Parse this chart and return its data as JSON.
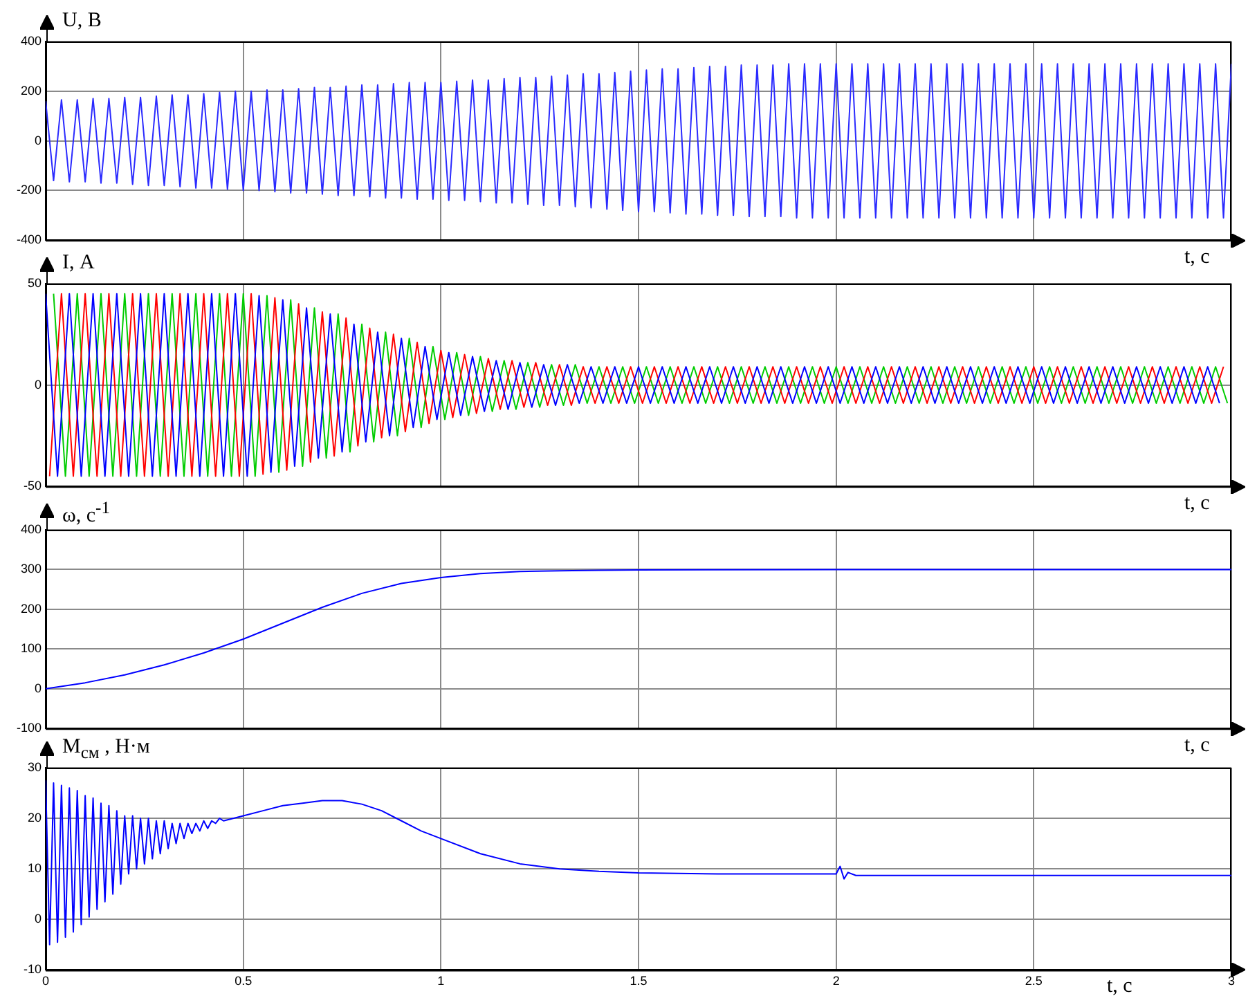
{
  "chart_data": [
    {
      "type": "line",
      "ylabel": "U, В",
      "xlabel": "t, с",
      "xlim": [
        0,
        3
      ],
      "xticks": [
        0,
        0.5,
        1,
        1.5,
        2,
        2.5,
        3
      ],
      "ylim": [
        -400,
        400
      ],
      "yticks": [
        -400,
        -200,
        0,
        200,
        400
      ],
      "grid": true,
      "tick_labels": "y",
      "legend": false,
      "marker": "none",
      "x": [
        0,
        0.02,
        0.04,
        0.06,
        0.08,
        0.1,
        0.12,
        0.14,
        0.16,
        0.18,
        0.2,
        0.22,
        0.24,
        0.26,
        0.28,
        0.3,
        0.32,
        0.34,
        0.36,
        0.38,
        0.4,
        0.42,
        0.44,
        0.46,
        0.48,
        0.5,
        0.52,
        0.54,
        0.56,
        0.58,
        0.6,
        0.62,
        0.64,
        0.66,
        0.68,
        0.7,
        0.72,
        0.74,
        0.76,
        0.78,
        0.8,
        0.82,
        0.84,
        0.86,
        0.88,
        0.9,
        0.92,
        0.94,
        0.96,
        0.98,
        1,
        1.02,
        1.04,
        1.06,
        1.08,
        1.1,
        1.12,
        1.14,
        1.16,
        1.18,
        1.2,
        1.22,
        1.24,
        1.26,
        1.28,
        1.3,
        1.32,
        1.34,
        1.36,
        1.38,
        1.4,
        1.42,
        1.44,
        1.46,
        1.48,
        1.5,
        1.52,
        1.54,
        1.56,
        1.58,
        1.6,
        1.62,
        1.64,
        1.66,
        1.68,
        1.7,
        1.72,
        1.74,
        1.76,
        1.78,
        1.8,
        1.82,
        1.84,
        1.86,
        1.88,
        1.9,
        1.92,
        1.94,
        1.96,
        1.98,
        2,
        2.02,
        2.04,
        2.06,
        2.08,
        2.1,
        2.12,
        2.14,
        2.16,
        2.18,
        2.2,
        2.22,
        2.24,
        2.26,
        2.28,
        2.3,
        2.32,
        2.34,
        2.36,
        2.38,
        2.4,
        2.42,
        2.44,
        2.46,
        2.48,
        2.5,
        2.52,
        2.54,
        2.56,
        2.58,
        2.6,
        2.62,
        2.64,
        2.66,
        2.68,
        2.7,
        2.72,
        2.74,
        2.76,
        2.78,
        2.8,
        2.82,
        2.84,
        2.86,
        2.88,
        2.9,
        2.92,
        2.94,
        2.96,
        2.98,
        3
      ],
      "series": [
        {
          "color": "#2a2aff",
          "values": [
            160,
            -160,
            165,
            -165,
            165,
            -165,
            170,
            -170,
            170,
            -170,
            175,
            -175,
            175,
            -180,
            180,
            -180,
            185,
            -185,
            185,
            -190,
            190,
            -190,
            195,
            -195,
            200,
            -200,
            200,
            -200,
            205,
            -205,
            205,
            -210,
            210,
            -210,
            215,
            -215,
            215,
            -220,
            220,
            -220,
            225,
            -225,
            225,
            -230,
            230,
            -230,
            235,
            -235,
            235,
            -235,
            235,
            -240,
            240,
            -240,
            245,
            -245,
            245,
            -250,
            250,
            -250,
            255,
            -255,
            255,
            -260,
            260,
            -260,
            265,
            -265,
            270,
            -270,
            270,
            -275,
            275,
            -280,
            280,
            -285,
            285,
            -285,
            290,
            -290,
            290,
            -295,
            295,
            -295,
            300,
            -300,
            300,
            -300,
            305,
            -305,
            305,
            -305,
            305,
            -305,
            310,
            -310,
            310,
            -310,
            310,
            -310,
            310,
            -310,
            310,
            -310,
            310,
            -310,
            310,
            -310,
            310,
            -310,
            310,
            -310,
            310,
            -310,
            310,
            -310,
            310,
            -310,
            310,
            -310,
            310,
            -310,
            310,
            -310,
            310,
            -310,
            310,
            -310,
            310,
            -310,
            310,
            -310,
            310,
            -310,
            310,
            -310,
            310,
            -310,
            310,
            -310,
            310,
            -310,
            310,
            -310,
            310,
            -310,
            310,
            -310,
            310,
            -310,
            310
          ]
        }
      ]
    },
    {
      "type": "line",
      "ylabel": "I, А",
      "xlabel": "t, с",
      "xlim": [
        0,
        3
      ],
      "xticks": [
        0,
        0.5,
        1,
        1.5,
        2,
        2.5,
        3
      ],
      "ylim": [
        -50,
        50
      ],
      "yticks": [
        -50,
        0,
        50
      ],
      "grid": true,
      "tick_labels": "y",
      "legend": false,
      "marker": "none",
      "series": [
        {
          "color": "#0000ff",
          "x": [
            0,
            0.03,
            0.06,
            0.09,
            0.12,
            0.15,
            0.18,
            0.21,
            0.24,
            0.27,
            0.3,
            0.33,
            0.36,
            0.39,
            0.42,
            0.45,
            0.48,
            0.51,
            0.54,
            0.57,
            0.6,
            0.63,
            0.66,
            0.69,
            0.72,
            0.75,
            0.78,
            0.81,
            0.84,
            0.87,
            0.9,
            0.93,
            0.96,
            0.99,
            1.02,
            1.05,
            1.08,
            1.11,
            1.14,
            1.17,
            1.2,
            1.23,
            1.26,
            1.29,
            1.32,
            1.35,
            1.38,
            1.41,
            1.44,
            1.47,
            1.5,
            1.53,
            1.56,
            1.59,
            1.62,
            1.65,
            1.68,
            1.71,
            1.74,
            1.77,
            1.8,
            1.83,
            1.86,
            1.89,
            1.92,
            1.95,
            1.98,
            2.01,
            2.04,
            2.07,
            2.1,
            2.13,
            2.16,
            2.19,
            2.22,
            2.25,
            2.28,
            2.31,
            2.34,
            2.37,
            2.4,
            2.43,
            2.46,
            2.49,
            2.52,
            2.55,
            2.58,
            2.61,
            2.64,
            2.67,
            2.7,
            2.73,
            2.76,
            2.79,
            2.82,
            2.85,
            2.88,
            2.91,
            2.94,
            2.97
          ],
          "values": [
            45,
            -45,
            45,
            -45,
            45,
            -45,
            45,
            -45,
            45,
            -45,
            45,
            -45,
            45,
            -45,
            45,
            -45,
            45,
            -45,
            44,
            -43,
            42,
            -40,
            38,
            -36,
            35,
            -33,
            30,
            -28,
            26,
            -25,
            23,
            -21,
            19,
            -17,
            16,
            -15,
            14,
            -13,
            12,
            -12,
            11,
            -11,
            10,
            -10,
            10,
            -9,
            9,
            -9,
            9,
            -9,
            9,
            -9,
            9,
            -9,
            9,
            -9,
            9,
            -9,
            9,
            -9,
            9,
            -9,
            9,
            -9,
            9,
            -9,
            9,
            -9,
            9,
            -9,
            9,
            -9,
            9,
            -9,
            9,
            -9,
            9,
            -9,
            9,
            -9,
            9,
            -9,
            9,
            -9,
            9,
            -9,
            9,
            -9,
            9,
            -9,
            9,
            -9,
            9,
            -9,
            9,
            -9,
            9,
            -9,
            9,
            -9
          ]
        },
        {
          "color": "#ff0000",
          "x": [
            0.01,
            0.04,
            0.07,
            0.1,
            0.13,
            0.16,
            0.19,
            0.22,
            0.25,
            0.28,
            0.31,
            0.34,
            0.37,
            0.4,
            0.43,
            0.46,
            0.49,
            0.52,
            0.55,
            0.58,
            0.61,
            0.64,
            0.67,
            0.7,
            0.73,
            0.76,
            0.79,
            0.82,
            0.85,
            0.88,
            0.91,
            0.94,
            0.97,
            1,
            1.03,
            1.06,
            1.09,
            1.12,
            1.15,
            1.18,
            1.21,
            1.24,
            1.27,
            1.3,
            1.33,
            1.36,
            1.39,
            1.42,
            1.45,
            1.48,
            1.51,
            1.54,
            1.57,
            1.6,
            1.63,
            1.66,
            1.69,
            1.72,
            1.75,
            1.78,
            1.81,
            1.84,
            1.87,
            1.9,
            1.93,
            1.96,
            1.99,
            2.02,
            2.05,
            2.08,
            2.11,
            2.14,
            2.17,
            2.2,
            2.23,
            2.26,
            2.29,
            2.32,
            2.35,
            2.38,
            2.41,
            2.44,
            2.47,
            2.5,
            2.53,
            2.56,
            2.59,
            2.62,
            2.65,
            2.68,
            2.71,
            2.74,
            2.77,
            2.8,
            2.83,
            2.86,
            2.89,
            2.92,
            2.95,
            2.98
          ],
          "values": [
            -45,
            45,
            -45,
            45,
            -45,
            45,
            -45,
            45,
            -45,
            45,
            -45,
            45,
            -45,
            45,
            -45,
            45,
            -45,
            45,
            -44,
            43,
            -42,
            40,
            -38,
            36,
            -35,
            33,
            -30,
            28,
            -26,
            25,
            -23,
            21,
            -19,
            17,
            -16,
            15,
            -14,
            13,
            -12,
            12,
            -11,
            11,
            -10,
            10,
            -10,
            9,
            -9,
            9,
            -9,
            9,
            -9,
            9,
            -9,
            9,
            -9,
            9,
            -9,
            9,
            -9,
            9,
            -9,
            9,
            -9,
            9,
            -9,
            9,
            -9,
            9,
            -9,
            9,
            -9,
            9,
            -9,
            9,
            -9,
            9,
            -9,
            9,
            -9,
            9,
            -9,
            9,
            -9,
            9,
            -9,
            9,
            -9,
            9,
            -9,
            9,
            -9,
            9,
            -9,
            9,
            -9,
            9,
            -9,
            9,
            -9,
            9
          ]
        },
        {
          "color": "#00cc00",
          "x": [
            0.02,
            0.05,
            0.08,
            0.11,
            0.14,
            0.17,
            0.2,
            0.23,
            0.26,
            0.29,
            0.32,
            0.35,
            0.38,
            0.41,
            0.44,
            0.47,
            0.5,
            0.53,
            0.56,
            0.59,
            0.62,
            0.65,
            0.68,
            0.71,
            0.74,
            0.77,
            0.8,
            0.83,
            0.86,
            0.89,
            0.92,
            0.95,
            0.98,
            1.01,
            1.04,
            1.07,
            1.1,
            1.13,
            1.16,
            1.19,
            1.22,
            1.25,
            1.28,
            1.31,
            1.34,
            1.37,
            1.4,
            1.43,
            1.46,
            1.49,
            1.52,
            1.55,
            1.58,
            1.61,
            1.64,
            1.67,
            1.7,
            1.73,
            1.76,
            1.79,
            1.82,
            1.85,
            1.88,
            1.91,
            1.94,
            1.97,
            2,
            2.03,
            2.06,
            2.09,
            2.12,
            2.15,
            2.18,
            2.21,
            2.24,
            2.27,
            2.3,
            2.33,
            2.36,
            2.39,
            2.42,
            2.45,
            2.48,
            2.51,
            2.54,
            2.57,
            2.6,
            2.63,
            2.66,
            2.69,
            2.72,
            2.75,
            2.78,
            2.81,
            2.84,
            2.87,
            2.9,
            2.93,
            2.96,
            2.99
          ],
          "values": [
            45,
            -45,
            45,
            -45,
            45,
            -45,
            45,
            -45,
            45,
            -45,
            45,
            -45,
            45,
            -45,
            45,
            -45,
            45,
            -45,
            44,
            -43,
            42,
            -40,
            38,
            -36,
            35,
            -33,
            30,
            -28,
            26,
            -25,
            23,
            -21,
            19,
            -17,
            16,
            -15,
            14,
            -13,
            12,
            -12,
            11,
            -11,
            10,
            -10,
            10,
            -9,
            9,
            -9,
            9,
            -9,
            9,
            -9,
            9,
            -9,
            9,
            -9,
            9,
            -9,
            9,
            -9,
            9,
            -9,
            9,
            -9,
            9,
            -9,
            9,
            -9,
            9,
            -9,
            9,
            -9,
            9,
            -9,
            9,
            -9,
            9,
            -9,
            9,
            -9,
            9,
            -9,
            9,
            -9,
            9,
            -9,
            9,
            -9,
            9,
            -9,
            9,
            -9,
            9,
            -9,
            9,
            -9,
            9,
            -9,
            9,
            -9
          ]
        }
      ]
    },
    {
      "type": "line",
      "ylabel": "ω, с$^{-1}$",
      "xlabel": "t, с",
      "xlim": [
        0,
        3
      ],
      "xticks": [
        0,
        0.5,
        1,
        1.5,
        2,
        2.5,
        3
      ],
      "ylim": [
        -100,
        400
      ],
      "yticks": [
        -100,
        0,
        100,
        200,
        300,
        400
      ],
      "grid": true,
      "tick_labels": "y",
      "legend": false,
      "marker": "none",
      "x": [
        0,
        0.1,
        0.2,
        0.3,
        0.4,
        0.5,
        0.6,
        0.7,
        0.8,
        0.9,
        1,
        1.1,
        1.2,
        1.3,
        1.4,
        1.5,
        2,
        2.5,
        3
      ],
      "series": [
        {
          "color": "#0000ff",
          "values": [
            0,
            15,
            35,
            60,
            90,
            125,
            165,
            205,
            240,
            265,
            280,
            290,
            295,
            297,
            298,
            299,
            300,
            300,
            300
          ]
        }
      ]
    },
    {
      "type": "line",
      "ylabel": "M$_{см}$ , Н·м",
      "xlabel": "t, с",
      "xlim": [
        0,
        3
      ],
      "xticks": [
        0,
        0.5,
        1,
        1.5,
        2,
        2.5,
        3
      ],
      "ylim": [
        -10,
        30
      ],
      "yticks": [
        -10,
        0,
        10,
        20,
        30
      ],
      "grid": true,
      "legend": false,
      "marker": "none",
      "x": [
        0,
        0.01,
        0.02,
        0.03,
        0.04,
        0.05,
        0.06,
        0.07,
        0.08,
        0.09,
        0.1,
        0.11,
        0.12,
        0.13,
        0.14,
        0.15,
        0.16,
        0.17,
        0.18,
        0.19,
        0.2,
        0.21,
        0.22,
        0.23,
        0.24,
        0.25,
        0.26,
        0.27,
        0.28,
        0.29,
        0.3,
        0.31,
        0.32,
        0.33,
        0.34,
        0.35,
        0.36,
        0.37,
        0.38,
        0.39,
        0.4,
        0.41,
        0.42,
        0.43,
        0.44,
        0.45,
        0.5,
        0.55,
        0.6,
        0.65,
        0.7,
        0.75,
        0.8,
        0.85,
        0.9,
        0.95,
        1,
        1.1,
        1.2,
        1.3,
        1.4,
        1.5,
        1.7,
        1.9,
        2,
        2.01,
        2.02,
        2.03,
        2.05,
        2.5,
        3
      ],
      "series": [
        {
          "color": "#0000ff",
          "values": [
            27.5,
            -5,
            27,
            -4.5,
            26.5,
            -3.5,
            26,
            -2.5,
            25.5,
            -1,
            24.5,
            0.5,
            24,
            2,
            23,
            3.5,
            22.5,
            5,
            21.5,
            7,
            20.5,
            9,
            20.5,
            10,
            20,
            11,
            20,
            12,
            19.5,
            13,
            19.5,
            14,
            19,
            15,
            19,
            16,
            19,
            17,
            19,
            17.5,
            19.5,
            18,
            19.5,
            19,
            20,
            19.5,
            20.5,
            21.5,
            22.5,
            23,
            23.5,
            23.5,
            22.8,
            21.5,
            19.5,
            17.5,
            16,
            13,
            11,
            10,
            9.5,
            9.2,
            9,
            9,
            9,
            10.5,
            8,
            9.3,
            8.7,
            8.7,
            8.7
          ]
        }
      ]
    }
  ]
}
